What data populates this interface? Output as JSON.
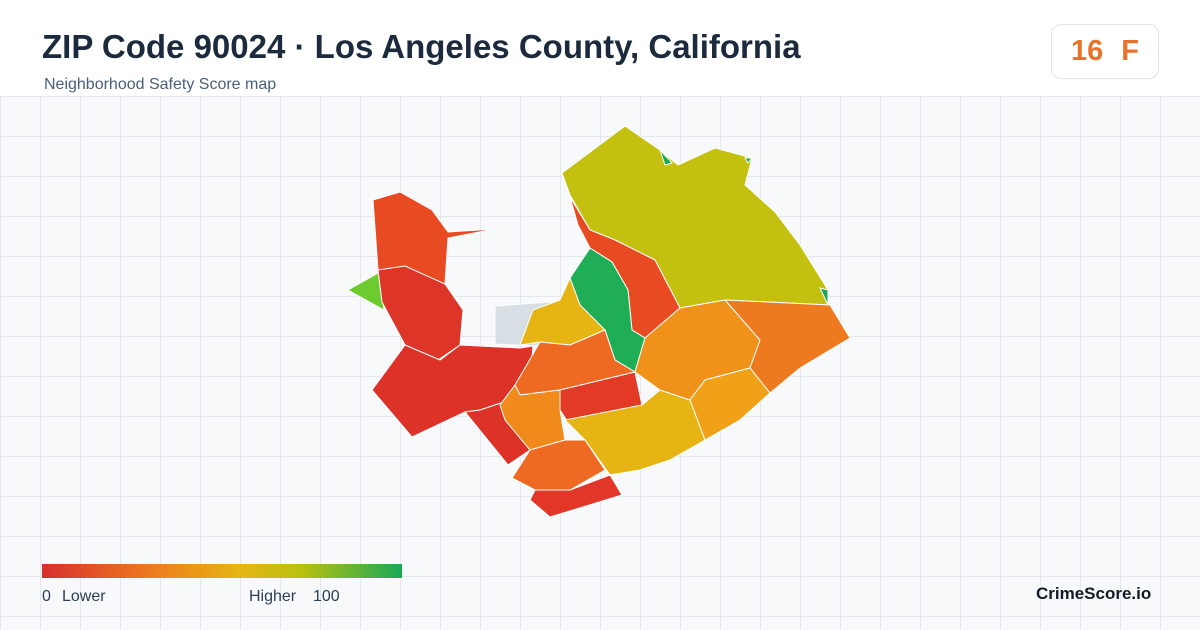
{
  "header": {
    "title": "ZIP Code 90024 · Los Angeles County, California",
    "subtitle": "Neighborhood Safety Score map"
  },
  "badge": {
    "score": 16,
    "grade": "F"
  },
  "legend": {
    "min": 0,
    "min_label": "Lower",
    "max_label": "Higher",
    "max": 100
  },
  "footer": {
    "brand": "CrimeScore.io"
  }
}
